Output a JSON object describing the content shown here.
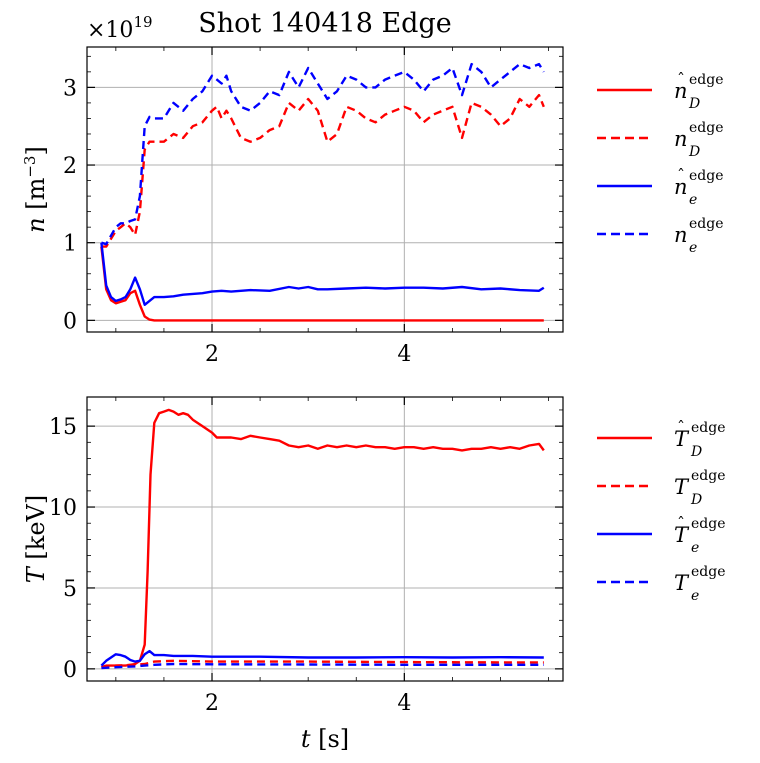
{
  "title": "Shot 140418 Edge",
  "chart_data": [
    {
      "type": "line",
      "id": "density",
      "xlim": [
        0.7,
        5.65
      ],
      "ylim": [
        -0.15,
        3.52
      ],
      "xticks": [
        2,
        4
      ],
      "yticks": [
        0,
        1,
        2,
        3
      ],
      "xtick_labels": [
        "2",
        "4"
      ],
      "ytick_labels": [
        "0",
        "1",
        "2",
        "3"
      ],
      "ylabel": "n [m⁻³]",
      "ylabel_symbol": "n",
      "ylabel_unit": "[m",
      "ylabel_exp": "−3",
      "ylabel_close": "]",
      "offset_text": "×10",
      "offset_exp": "19",
      "grid": true,
      "legend_position": "right",
      "series": [
        {
          "name": "n̂_D^edge",
          "base": "n",
          "hat": true,
          "sub": "D",
          "sup": "edge",
          "color": "#ff0000",
          "style": "solid",
          "x": [
            0.85,
            0.9,
            0.95,
            1.0,
            1.05,
            1.1,
            1.15,
            1.2,
            1.25,
            1.3,
            1.35,
            1.4,
            1.5,
            2.0,
            3.0,
            4.0,
            5.0,
            5.45
          ],
          "y": [
            0.95,
            0.4,
            0.26,
            0.22,
            0.24,
            0.26,
            0.35,
            0.38,
            0.2,
            0.05,
            0.01,
            0.0,
            0.0,
            0.0,
            0.0,
            0.0,
            0.0,
            0.0
          ]
        },
        {
          "name": "n_D^edge",
          "base": "n",
          "hat": false,
          "sub": "D",
          "sup": "edge",
          "color": "#ff0000",
          "style": "dashed",
          "x": [
            0.85,
            0.9,
            1.0,
            1.05,
            1.1,
            1.15,
            1.2,
            1.25,
            1.3,
            1.35,
            1.4,
            1.5,
            1.6,
            1.7,
            1.8,
            1.9,
            2.0,
            2.05,
            2.1,
            2.15,
            2.2,
            2.3,
            2.4,
            2.5,
            2.6,
            2.7,
            2.8,
            2.9,
            3.0,
            3.1,
            3.2,
            3.3,
            3.4,
            3.5,
            3.6,
            3.7,
            3.8,
            3.9,
            4.0,
            4.1,
            4.2,
            4.3,
            4.4,
            4.5,
            4.6,
            4.7,
            4.8,
            4.9,
            5.0,
            5.1,
            5.2,
            5.3,
            5.4,
            5.45
          ],
          "y": [
            0.95,
            0.95,
            1.15,
            1.2,
            1.25,
            1.2,
            1.1,
            1.4,
            2.2,
            2.3,
            2.3,
            2.3,
            2.4,
            2.35,
            2.5,
            2.55,
            2.7,
            2.75,
            2.6,
            2.7,
            2.6,
            2.35,
            2.3,
            2.35,
            2.45,
            2.5,
            2.8,
            2.7,
            2.85,
            2.7,
            2.3,
            2.4,
            2.75,
            2.7,
            2.6,
            2.55,
            2.65,
            2.7,
            2.75,
            2.7,
            2.55,
            2.65,
            2.7,
            2.75,
            2.35,
            2.8,
            2.75,
            2.65,
            2.5,
            2.6,
            2.85,
            2.75,
            2.9,
            2.75
          ]
        },
        {
          "name": "n̂_e^edge",
          "base": "n",
          "hat": true,
          "sub": "e",
          "sup": "edge",
          "color": "#0000ff",
          "style": "solid",
          "x": [
            0.85,
            0.9,
            0.95,
            1.0,
            1.05,
            1.1,
            1.15,
            1.2,
            1.25,
            1.3,
            1.35,
            1.4,
            1.5,
            1.6,
            1.7,
            1.8,
            1.9,
            2.0,
            2.1,
            2.2,
            2.4,
            2.6,
            2.8,
            2.9,
            3.0,
            3.1,
            3.2,
            3.4,
            3.6,
            3.8,
            4.0,
            4.2,
            4.4,
            4.6,
            4.8,
            5.0,
            5.2,
            5.4,
            5.45
          ],
          "y": [
            1.0,
            0.45,
            0.3,
            0.25,
            0.27,
            0.3,
            0.4,
            0.55,
            0.4,
            0.2,
            0.25,
            0.3,
            0.3,
            0.31,
            0.33,
            0.34,
            0.35,
            0.37,
            0.38,
            0.37,
            0.39,
            0.38,
            0.43,
            0.41,
            0.43,
            0.4,
            0.4,
            0.41,
            0.42,
            0.41,
            0.42,
            0.42,
            0.41,
            0.43,
            0.4,
            0.41,
            0.39,
            0.38,
            0.42
          ]
        },
        {
          "name": "n_e^edge",
          "base": "n",
          "hat": false,
          "sub": "e",
          "sup": "edge",
          "color": "#0000ff",
          "style": "dashed",
          "x": [
            0.85,
            0.9,
            1.0,
            1.05,
            1.1,
            1.15,
            1.2,
            1.25,
            1.3,
            1.35,
            1.4,
            1.5,
            1.6,
            1.7,
            1.8,
            1.9,
            2.0,
            2.05,
            2.1,
            2.15,
            2.2,
            2.3,
            2.4,
            2.5,
            2.6,
            2.7,
            2.8,
            2.9,
            3.0,
            3.1,
            3.2,
            3.3,
            3.4,
            3.5,
            3.6,
            3.7,
            3.8,
            3.9,
            4.0,
            4.1,
            4.2,
            4.3,
            4.4,
            4.5,
            4.6,
            4.7,
            4.8,
            4.9,
            5.0,
            5.1,
            5.2,
            5.3,
            5.4,
            5.45
          ],
          "y": [
            1.0,
            0.98,
            1.2,
            1.25,
            1.25,
            1.28,
            1.3,
            1.6,
            2.5,
            2.62,
            2.6,
            2.6,
            2.8,
            2.7,
            2.85,
            2.95,
            3.15,
            3.1,
            3.05,
            3.15,
            2.95,
            2.75,
            2.7,
            2.8,
            2.95,
            2.9,
            3.2,
            3.0,
            3.25,
            3.05,
            2.85,
            2.95,
            3.15,
            3.1,
            3.0,
            3.0,
            3.1,
            3.15,
            3.2,
            3.1,
            2.95,
            3.1,
            3.15,
            3.25,
            2.9,
            3.3,
            3.2,
            3.0,
            3.1,
            3.2,
            3.3,
            3.25,
            3.3,
            3.2
          ]
        }
      ]
    },
    {
      "type": "line",
      "id": "temperature",
      "xlim": [
        0.7,
        5.65
      ],
      "ylim": [
        -0.75,
        16.8
      ],
      "xticks": [
        2,
        4
      ],
      "yticks": [
        0,
        5,
        10,
        15
      ],
      "xtick_labels": [
        "2",
        "4"
      ],
      "ytick_labels": [
        "0",
        "5",
        "10",
        "15"
      ],
      "ylabel": "T [keV]",
      "ylabel_symbol": "T",
      "ylabel_unit": "[keV]",
      "xlabel": "t [s]",
      "xlabel_symbol": "t",
      "xlabel_unit": "[s]",
      "grid": true,
      "legend_position": "right",
      "series": [
        {
          "name": "T̂_D^edge",
          "base": "T",
          "hat": true,
          "sub": "D",
          "sup": "edge",
          "color": "#ff0000",
          "style": "solid",
          "x": [
            0.85,
            0.9,
            1.0,
            1.1,
            1.2,
            1.25,
            1.3,
            1.33,
            1.36,
            1.4,
            1.45,
            1.5,
            1.55,
            1.6,
            1.65,
            1.7,
            1.75,
            1.8,
            1.9,
            2.0,
            2.05,
            2.1,
            2.2,
            2.3,
            2.4,
            2.5,
            2.6,
            2.7,
            2.8,
            2.9,
            3.0,
            3.1,
            3.2,
            3.3,
            3.4,
            3.5,
            3.6,
            3.7,
            3.8,
            3.9,
            4.0,
            4.1,
            4.2,
            4.3,
            4.4,
            4.5,
            4.6,
            4.7,
            4.8,
            4.9,
            5.0,
            5.1,
            5.2,
            5.3,
            5.4,
            5.45
          ],
          "y": [
            0.1,
            0.2,
            0.2,
            0.2,
            0.3,
            0.5,
            1.5,
            6.0,
            12.0,
            15.2,
            15.8,
            15.9,
            16.0,
            15.9,
            15.7,
            15.8,
            15.7,
            15.4,
            15.0,
            14.6,
            14.3,
            14.3,
            14.3,
            14.2,
            14.4,
            14.3,
            14.2,
            14.1,
            13.8,
            13.7,
            13.8,
            13.6,
            13.8,
            13.7,
            13.8,
            13.7,
            13.8,
            13.7,
            13.7,
            13.6,
            13.7,
            13.7,
            13.6,
            13.7,
            13.6,
            13.6,
            13.5,
            13.6,
            13.6,
            13.7,
            13.6,
            13.7,
            13.6,
            13.8,
            13.9,
            13.5
          ]
        },
        {
          "name": "T_D^edge",
          "base": "T",
          "hat": false,
          "sub": "D",
          "sup": "edge",
          "color": "#ff0000",
          "style": "dashed",
          "x": [
            0.85,
            1.0,
            1.2,
            1.3,
            1.4,
            1.6,
            2.0,
            3.0,
            4.0,
            5.0,
            5.45
          ],
          "y": [
            0.1,
            0.2,
            0.25,
            0.3,
            0.45,
            0.5,
            0.45,
            0.45,
            0.42,
            0.4,
            0.4
          ]
        },
        {
          "name": "T̂_e^edge",
          "base": "T",
          "hat": true,
          "sub": "e",
          "sup": "edge",
          "color": "#0000ff",
          "style": "solid",
          "x": [
            0.85,
            0.9,
            0.95,
            1.0,
            1.05,
            1.1,
            1.15,
            1.2,
            1.25,
            1.3,
            1.35,
            1.4,
            1.5,
            1.6,
            1.8,
            2.0,
            2.5,
            3.0,
            3.5,
            4.0,
            4.5,
            5.0,
            5.45
          ],
          "y": [
            0.2,
            0.5,
            0.7,
            0.9,
            0.85,
            0.75,
            0.55,
            0.45,
            0.5,
            0.9,
            1.1,
            0.85,
            0.85,
            0.8,
            0.8,
            0.75,
            0.75,
            0.7,
            0.7,
            0.72,
            0.7,
            0.72,
            0.7
          ]
        },
        {
          "name": "T_e^edge",
          "base": "T",
          "hat": false,
          "sub": "e",
          "sup": "edge",
          "color": "#0000ff",
          "style": "dashed",
          "x": [
            0.85,
            1.0,
            1.2,
            1.3,
            1.4,
            1.6,
            2.0,
            3.0,
            4.0,
            5.0,
            5.45
          ],
          "y": [
            0.05,
            0.1,
            0.15,
            0.2,
            0.25,
            0.3,
            0.28,
            0.27,
            0.25,
            0.25,
            0.25
          ]
        }
      ]
    }
  ]
}
